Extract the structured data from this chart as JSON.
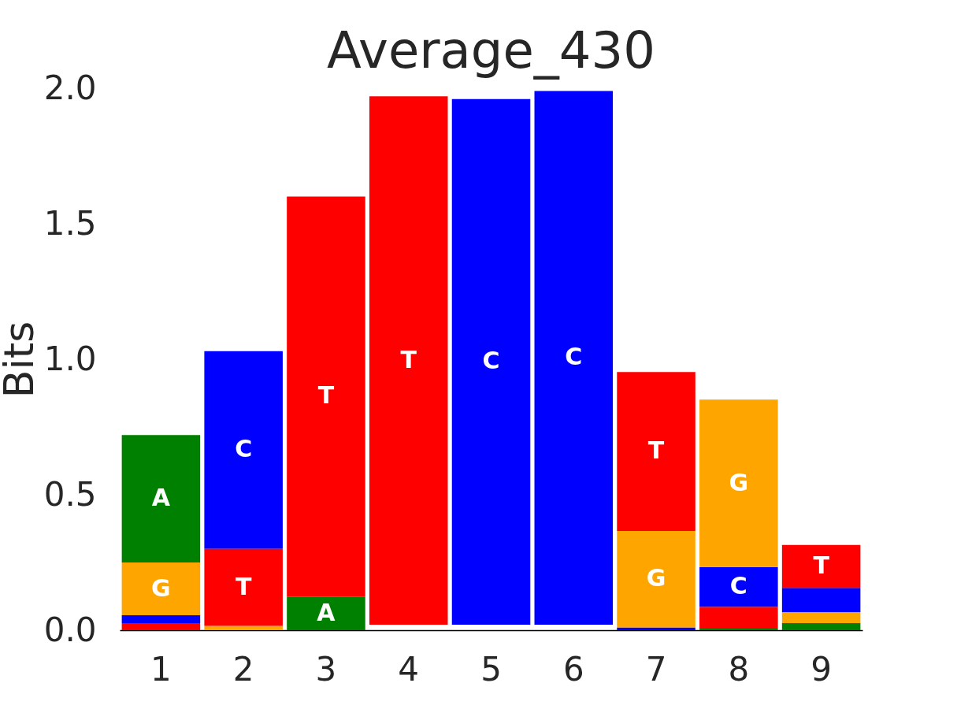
{
  "chart_data": {
    "type": "bar",
    "title": "Average_430",
    "ylabel": "Bits",
    "categories": [
      "1",
      "2",
      "3",
      "4",
      "5",
      "6",
      "7",
      "8",
      "9"
    ],
    "ylim": [
      0,
      2.0
    ],
    "yticks": [
      {
        "value": 0,
        "label": "0.0"
      },
      0.5,
      {
        "value": 1,
        "label": "1.0"
      },
      1.5,
      {
        "value": 2,
        "label": "2.0"
      }
    ],
    "series": [
      {
        "name": "A",
        "color": "#008000",
        "values": [
          0.47,
          null,
          0.124,
          null,
          null,
          null,
          null,
          0.006,
          0.026
        ],
        "base": [
          0.25,
          null,
          0,
          null,
          null,
          null,
          null,
          0,
          0
        ]
      },
      {
        "name": "C",
        "color": "#0000ff",
        "values": [
          0.029,
          0.73,
          null,
          null,
          1.94,
          1.97,
          0.01,
          0.147,
          0.089
        ],
        "base": [
          0.026,
          0.3,
          null,
          null,
          0.02,
          0.02,
          0,
          0.086,
          0.067
        ]
      },
      {
        "name": "G",
        "color": "#ffa500",
        "values": [
          0.195,
          0.016,
          null,
          null,
          null,
          null,
          0.356,
          0.618,
          0.041
        ],
        "base": [
          0.055,
          0,
          null,
          null,
          null,
          null,
          0.01,
          0.233,
          0.026
        ]
      },
      {
        "name": "T",
        "color": "#ff0000",
        "values": [
          0.026,
          0.284,
          1.476,
          1.95,
          null,
          null,
          0.587,
          0.08,
          0.159
        ],
        "base": [
          0,
          0.016,
          0.124,
          0.02,
          null,
          null,
          0.366,
          0.006,
          0.156
        ]
      }
    ]
  }
}
